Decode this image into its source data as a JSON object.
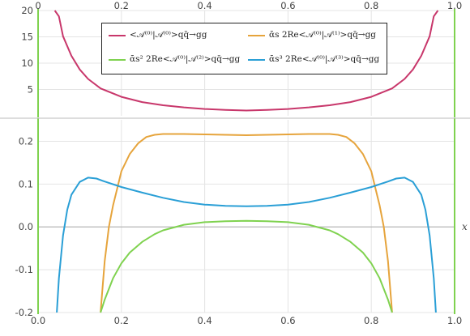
{
  "chart_data": [
    {
      "type": "line",
      "xlim": [
        0,
        1
      ],
      "ylim": [
        0,
        20
      ],
      "x_ticks": [
        "0",
        "0.2",
        "0.4",
        "0.6",
        "0.8",
        "1.0"
      ],
      "y_ticks": [
        "5",
        "10",
        "15",
        "20"
      ],
      "y_tick_values": [
        5,
        10,
        15,
        20
      ],
      "x_tick_position": "top",
      "grid": true,
      "series": [
        {
          "name": "<𝒜⁽⁰⁾|𝒜⁽⁰⁾>qq̄→gg",
          "color": "#c8376b",
          "x": [
            0.04,
            0.05,
            0.06,
            0.08,
            0.1,
            0.12,
            0.15,
            0.2,
            0.25,
            0.3,
            0.35,
            0.4,
            0.45,
            0.5,
            0.55,
            0.6,
            0.65,
            0.7,
            0.75,
            0.8,
            0.85,
            0.88,
            0.9,
            0.92,
            0.94,
            0.95,
            0.96
          ],
          "y": [
            20,
            18.9,
            15.1,
            11.4,
            8.8,
            7.0,
            5.2,
            3.6,
            2.6,
            2.0,
            1.6,
            1.3,
            1.1,
            1.0,
            1.1,
            1.3,
            1.6,
            2.0,
            2.6,
            3.6,
            5.2,
            7.0,
            8.8,
            11.4,
            15.1,
            18.9,
            20
          ]
        }
      ]
    },
    {
      "type": "line",
      "xlim": [
        0,
        1
      ],
      "ylim": [
        -0.2,
        0.25
      ],
      "x_ticks": [
        "0.0",
        "0.2",
        "0.4",
        "0.6",
        "0.8",
        "1.0"
      ],
      "y_ticks": [
        "-0.2",
        "-0.1",
        "0.0",
        "0.1",
        "0.2"
      ],
      "y_tick_values": [
        -0.2,
        -0.1,
        0,
        0.1,
        0.2
      ],
      "xlabel": "x",
      "grid": true,
      "series": [
        {
          "name": "ᾱs 2Re<𝒜⁽⁰⁾|𝒜⁽¹⁾>qq̄→gg",
          "color": "#e6a43c",
          "x": [
            0.15,
            0.16,
            0.17,
            0.18,
            0.19,
            0.2,
            0.22,
            0.24,
            0.26,
            0.28,
            0.3,
            0.35,
            0.4,
            0.45,
            0.5,
            0.55,
            0.6,
            0.65,
            0.7,
            0.72,
            0.74,
            0.76,
            0.78,
            0.8,
            0.81,
            0.82,
            0.83,
            0.84,
            0.85
          ],
          "y": [
            -0.2,
            -0.08,
            0.0,
            0.05,
            0.09,
            0.13,
            0.17,
            0.195,
            0.21,
            0.215,
            0.217,
            0.217,
            0.216,
            0.215,
            0.214,
            0.215,
            0.216,
            0.217,
            0.217,
            0.215,
            0.21,
            0.195,
            0.17,
            0.13,
            0.09,
            0.05,
            0.0,
            -0.08,
            -0.2
          ]
        },
        {
          "name": "ᾱs² 2Re<𝒜⁽⁰⁾|𝒜⁽²⁾>qq̄→gg",
          "color": "#7fd24f",
          "x": [
            0.15,
            0.16,
            0.18,
            0.2,
            0.22,
            0.25,
            0.28,
            0.3,
            0.35,
            0.4,
            0.45,
            0.5,
            0.55,
            0.6,
            0.65,
            0.7,
            0.72,
            0.75,
            0.78,
            0.8,
            0.82,
            0.84,
            0.85
          ],
          "y": [
            -0.2,
            -0.17,
            -0.12,
            -0.085,
            -0.06,
            -0.035,
            -0.017,
            -0.008,
            0.005,
            0.011,
            0.013,
            0.014,
            0.013,
            0.011,
            0.005,
            -0.008,
            -0.017,
            -0.035,
            -0.06,
            -0.085,
            -0.12,
            -0.17,
            -0.2
          ]
        },
        {
          "name": "ᾱs³ 2Re<𝒜⁽⁰⁾|𝒜⁽³⁾>qq̄→gg",
          "color": "#2a9fd6",
          "x": [
            0.045,
            0.05,
            0.06,
            0.07,
            0.08,
            0.1,
            0.12,
            0.14,
            0.16,
            0.2,
            0.25,
            0.3,
            0.35,
            0.4,
            0.45,
            0.5,
            0.55,
            0.6,
            0.65,
            0.7,
            0.75,
            0.8,
            0.84,
            0.86,
            0.88,
            0.9,
            0.92,
            0.93,
            0.94,
            0.95,
            0.955
          ],
          "y": [
            -0.2,
            -0.12,
            -0.02,
            0.04,
            0.075,
            0.105,
            0.115,
            0.113,
            0.106,
            0.093,
            0.08,
            0.068,
            0.058,
            0.052,
            0.049,
            0.048,
            0.049,
            0.052,
            0.058,
            0.068,
            0.08,
            0.093,
            0.106,
            0.113,
            0.115,
            0.105,
            0.075,
            0.04,
            -0.02,
            -0.12,
            -0.2
          ]
        }
      ]
    }
  ],
  "legend": {
    "items": [
      {
        "name": "<𝒜⁽⁰⁾|𝒜⁽⁰⁾>qq̄→gg",
        "color": "#c8376b"
      },
      {
        "name": "ᾱs 2Re<𝒜⁽⁰⁾|𝒜⁽¹⁾>qq̄→gg",
        "color": "#e6a43c"
      },
      {
        "name": "ᾱs² 2Re<𝒜⁽⁰⁾|𝒜⁽²⁾>qq̄→gg",
        "color": "#7fd24f"
      },
      {
        "name": "ᾱs³ 2Re<𝒜⁽⁰⁾|𝒜⁽³⁾>qq̄→gg",
        "color": "#2a9fd6"
      }
    ]
  },
  "colors": {
    "boundary": "#7fd24f",
    "grid": "#e4e4e4",
    "axis": "#aaaaaa",
    "frame": "#bbbbbb"
  }
}
